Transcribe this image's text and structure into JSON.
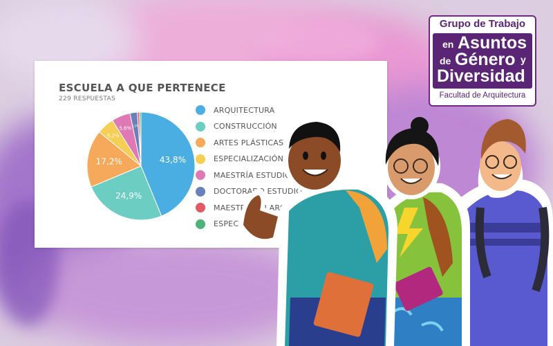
{
  "chart_data": {
    "type": "pie",
    "title": "ESCUELA A QUE PERTENECE",
    "subtitle": "229 RESPUESTAS",
    "slices": [
      {
        "label": "ARQUITECTURA",
        "value": 43.8,
        "display": "43,8%",
        "color": "#4aaee3"
      },
      {
        "label": "CONSTRUCCIÓN",
        "value": 24.9,
        "display": "24,9%",
        "color": "#6ccdc3"
      },
      {
        "label": "ARTES PLÁSTICAS",
        "value": 17.2,
        "display": "17,2%",
        "color": "#f7a95b"
      },
      {
        "label": "ESPECIALIZACIÓN R",
        "value": 5.2,
        "display": "5,2%",
        "color": "#f6cd55"
      },
      {
        "label": "MAESTRÍA ESTUDIO",
        "value": 5.6,
        "display": "5,6%",
        "color": "#df79b6"
      },
      {
        "label": "DOCTORADO ESTUDIO",
        "value": 2.2,
        "display": "2,2%",
        "color": "#6980bd"
      },
      {
        "label": "MAESTRÍA EN ARC",
        "value": 0.6,
        "display": "",
        "color": "#e35a62"
      },
      {
        "label": "ESPECIALIZACIÓ",
        "value": 0.5,
        "display": "",
        "color": "#4fb27b"
      }
    ],
    "legend_position": "right"
  },
  "logo": {
    "top_text": "Grupo de Trabajo",
    "line_en": "en",
    "line_asuntos": "Asuntos",
    "line_de": "de",
    "line_genero": "Género",
    "line_y": "y",
    "line_diversidad": "Diversidad",
    "bottom_text": "Facultad de Arquitectura",
    "color": "#5a2574"
  }
}
